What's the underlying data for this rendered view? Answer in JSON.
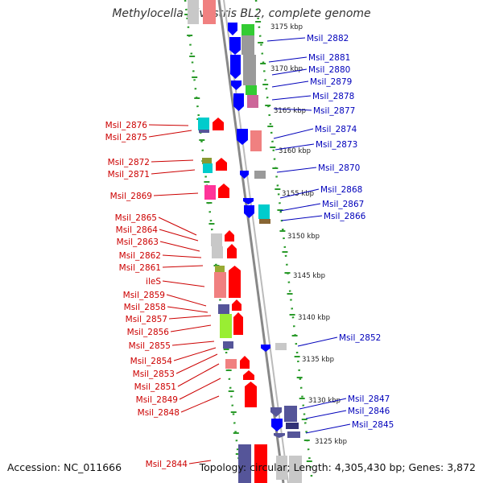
{
  "title": "Methylocella silvestris BL2, complete genome",
  "footer": {
    "accession": "Accession: NC_011666",
    "summary": "Topology: circular; Length: 4,305,430 bp; Genes: 3,872"
  },
  "colors": {
    "plus_label": "#cc0000",
    "minus_label": "#0000bb",
    "backbone": "#888888",
    "dots": "#2a9a2a",
    "gene_red": "#ff0000",
    "gene_blue": "#0000ff",
    "gene_gray": "#9a9a9a",
    "gene_cyan": "#00cccc",
    "gene_pink": "#ff3399",
    "gene_salmon": "#f08080",
    "gene_lime": "#99ee33",
    "gene_indigo": "#555599",
    "gene_green": "#33cc33",
    "gene_light_gray": "#c8c8c8"
  },
  "scale_labels": [
    "3175 kbp",
    "3170 kbp",
    "3165 kbp",
    "3160 kbp",
    "3155 kbp",
    "3150 kbp",
    "3145 kbp",
    "3140 kbp",
    "3135 kbp",
    "3130 kbp",
    "3125 kbp"
  ],
  "minus_strand_labels": [
    "Msil_2882",
    "Msil_2881",
    "Msil_2880",
    "Msil_2879",
    "Msil_2878",
    "Msil_2877",
    "Msil_2874",
    "Msil_2873",
    "Msil_2870",
    "Msil_2868",
    "Msil_2867",
    "Msil_2866",
    "Msil_2852",
    "Msil_2847",
    "Msil_2846",
    "Msil_2845"
  ],
  "plus_strand_labels": [
    "Msil_2876",
    "Msil_2875",
    "Msil_2872",
    "Msil_2871",
    "Msil_2869",
    "Msil_2865",
    "Msil_2864",
    "Msil_2863",
    "Msil_2862",
    "Msil_2861",
    "ileS",
    "Msil_2859",
    "Msil_2858",
    "Msil_2857",
    "Msil_2856",
    "Msil_2855",
    "Msil_2854",
    "Msil_2853",
    "Msil_2851",
    "Msil_2849",
    "Msil_2848",
    "Msil_2844"
  ]
}
